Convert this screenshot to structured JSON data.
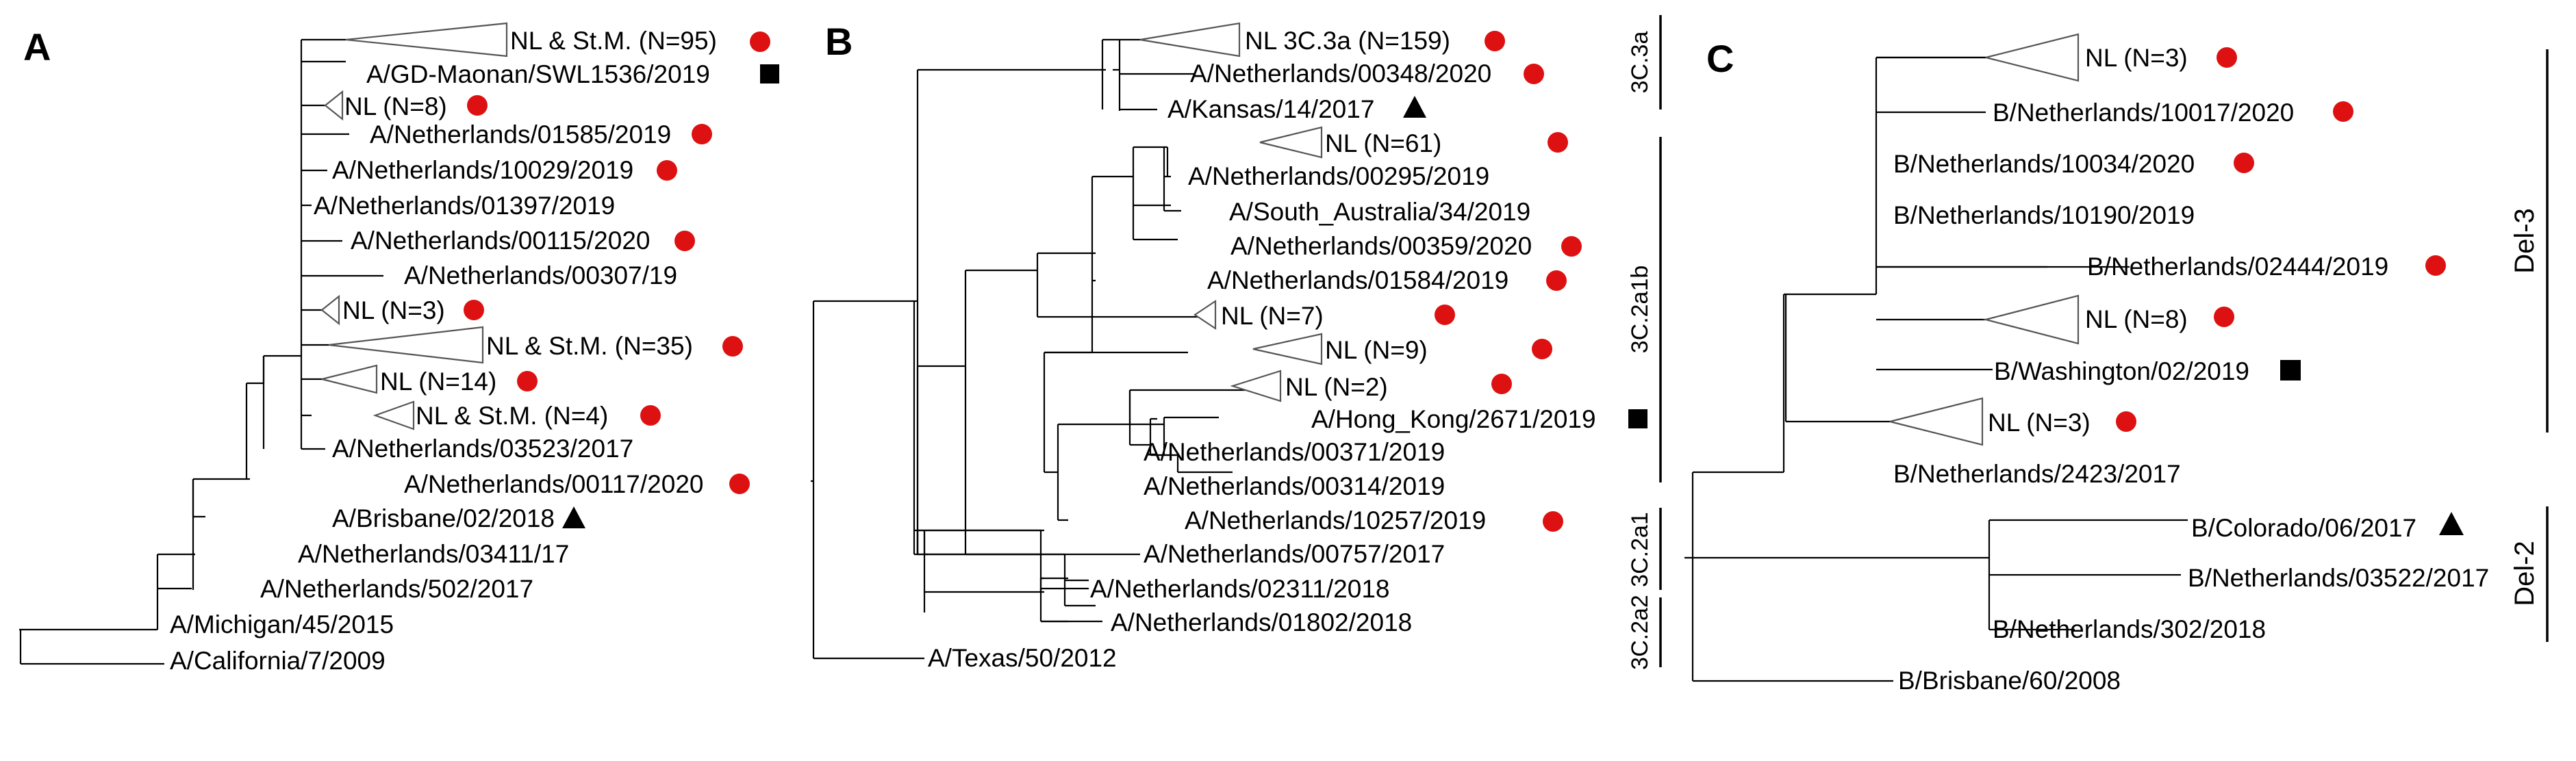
{
  "panels": {
    "a": {
      "label": "A",
      "leaves": [
        "NL & St.M. (N=95)",
        "A/GD-Maonan/SWL1536/2019",
        "NL (N=8)",
        "A/Netherlands/01585/2019",
        "A/Netherlands/10029/2019",
        "A/Netherlands/01397/2019",
        "A/Netherlands/00115/2020",
        "A/Netherlands/00307/19",
        "NL (N=3)",
        "NL & St.M. (N=35)",
        "NL (N=14)",
        "NL & St.M. (N=4)",
        "A/Netherlands/03523/2017",
        "A/Netherlands/00117/2020",
        "A/Brisbane/02/2018",
        "A/Netherlands/03411/17",
        "A/Netherlands/502/2017",
        "A/Michigan/45/2015",
        "A/California/7/2009"
      ]
    },
    "b": {
      "label": "B",
      "leaves": [
        "NL 3C.3a (N=159)",
        "A/Netherlands/00348/2020",
        "A/Kansas/14/2017",
        "NL (N=61)",
        "A/Netherlands/00295/2019",
        "A/South_Australia/34/2019",
        "A/Netherlands/00359/2020",
        "A/Netherlands/01584/2019",
        "NL (N=7)",
        "NL (N=9)",
        "NL (N=2)",
        "A/Hong_Kong/2671/2019",
        "A/Netherlands/00371/2019",
        "A/Netherlands/00314/2019",
        "A/Netherlands/10257/2019",
        "A/Netherlands/00757/2017",
        "A/Netherlands/02311/2018",
        "A/Netherlands/01802/2018",
        "A/Texas/50/2012"
      ],
      "clades": [
        "3C.3a",
        "3C.2a1b",
        "3C.2a1",
        "3C.2a2"
      ]
    },
    "c": {
      "label": "C",
      "leaves": [
        "NL (N=3)",
        "B/Netherlands/10017/2020",
        "B/Netherlands/10034/2020",
        "B/Netherlands/10190/2019",
        "B/Netherlands/02444/2019",
        "NL (N=8)",
        "B/Washington/02/2019",
        "NL (N=3)",
        "B/Netherlands/2423/2017",
        "B/Colorado/06/2017",
        "B/Netherlands/03522/2017",
        "B/Netherlands/302/2018",
        "B/Brisbane/60/2008"
      ],
      "clades": [
        "Del-3",
        "Del-2"
      ]
    }
  },
  "colors": {
    "circle": "#dd1111",
    "square": "#000000",
    "triangle": "#000000",
    "branch": "#000000"
  },
  "marker_shapes": [
    "circle-marker",
    "square-marker",
    "triangle-marker"
  ]
}
